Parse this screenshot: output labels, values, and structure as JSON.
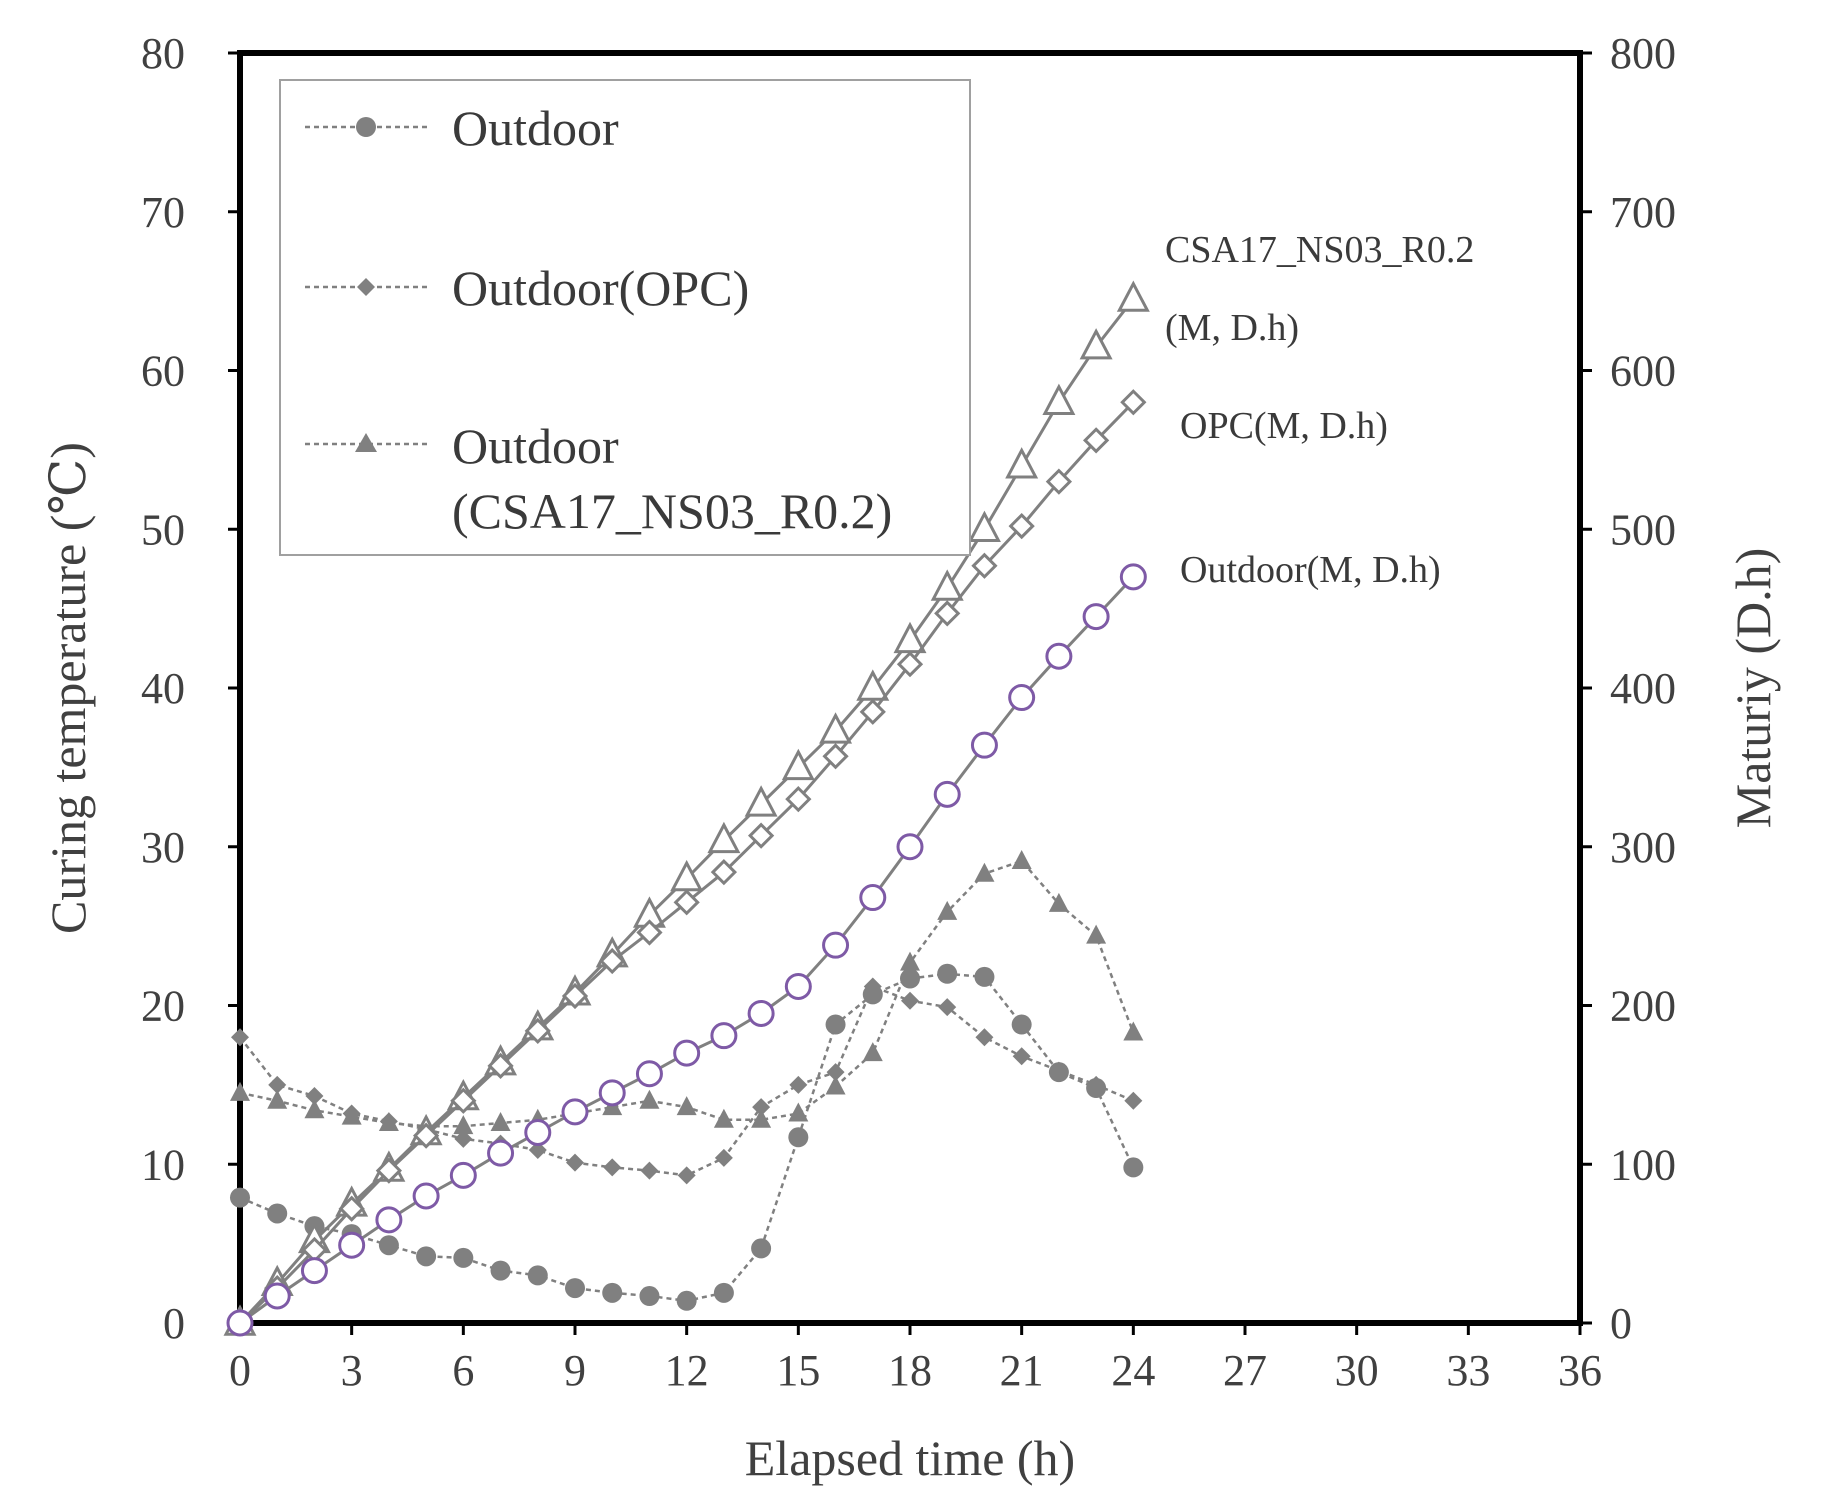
{
  "chart_data": {
    "type": "line",
    "xlabel": "Elapsed time (h)",
    "ylabel_left": "Curing temperature (℃)",
    "ylabel_right": "Maturiy (D.h)",
    "xlim": [
      0,
      36
    ],
    "ylim_left": [
      0,
      80
    ],
    "ylim_right": [
      0,
      800
    ],
    "x_ticks": [
      0,
      3,
      6,
      9,
      12,
      15,
      18,
      21,
      24,
      27,
      30,
      33,
      36
    ],
    "y_left_ticks": [
      0,
      10,
      20,
      30,
      40,
      50,
      60,
      70,
      80
    ],
    "y_right_ticks": [
      0,
      100,
      200,
      300,
      400,
      500,
      600,
      700,
      800
    ],
    "grid": false,
    "legend_position": "top-left",
    "x": [
      0,
      1,
      2,
      3,
      4,
      5,
      6,
      7,
      8,
      9,
      10,
      11,
      12,
      13,
      14,
      15,
      16,
      17,
      18,
      19,
      20,
      21,
      22,
      23,
      24
    ],
    "legend": [
      {
        "label_lines": [
          "Outdoor"
        ],
        "marker": "circle"
      },
      {
        "label_lines": [
          "Outdoor(OPC)"
        ],
        "marker": "diamond"
      },
      {
        "label_lines": [
          "Outdoor",
          "(CSA17_NS03_R0.2)"
        ],
        "marker": "triangle"
      }
    ],
    "series": [
      {
        "name": "Outdoor",
        "axis": "left",
        "marker": "circle",
        "filled": true,
        "line": "dotted",
        "color": "#808080",
        "values": [
          7.9,
          6.9,
          6.1,
          5.6,
          4.9,
          4.2,
          4.1,
          3.3,
          3.0,
          2.2,
          1.9,
          1.7,
          1.4,
          1.9,
          4.7,
          11.7,
          18.8,
          20.7,
          21.7,
          22.0,
          21.8,
          18.8,
          15.8,
          14.8,
          9.8
        ]
      },
      {
        "name": "Outdoor(OPC)",
        "axis": "left",
        "marker": "diamond",
        "filled": true,
        "line": "dotted",
        "color": "#808080",
        "values": [
          18.0,
          15.0,
          14.3,
          13.2,
          12.7,
          12.2,
          11.6,
          11.3,
          10.9,
          10.1,
          9.8,
          9.6,
          9.3,
          10.4,
          13.6,
          15.0,
          15.8,
          21.2,
          20.3,
          19.9,
          18.0,
          16.8,
          15.9,
          15.0,
          14.0
        ]
      },
      {
        "name": "Outdoor(CSA17_NS03_R0.2)",
        "axis": "left",
        "marker": "triangle",
        "filled": true,
        "line": "dotted",
        "color": "#808080",
        "values": [
          14.5,
          14.0,
          13.4,
          13.0,
          12.6,
          12.4,
          12.4,
          12.6,
          12.8,
          13.2,
          13.6,
          14.0,
          13.6,
          12.8,
          12.8,
          13.2,
          14.9,
          17.0,
          22.7,
          25.9,
          28.3,
          29.1,
          26.4,
          24.4,
          18.3
        ]
      },
      {
        "name": "CSA17_NS03_R0.2 (M, D.h)",
        "axis": "right",
        "marker": "triangle",
        "filled": false,
        "line": "solid",
        "color": "#808080",
        "values": [
          0,
          25,
          52,
          75,
          97,
          120,
          142,
          164,
          186,
          208,
          232,
          257,
          280,
          304,
          327,
          350,
          373,
          400,
          430,
          463,
          500,
          540,
          580,
          615,
          645
        ]
      },
      {
        "name": "OPC (M, D.h)",
        "axis": "right",
        "marker": "diamond",
        "filled": false,
        "line": "solid",
        "color": "#808080",
        "values": [
          0,
          22,
          46,
          72,
          96,
          118,
          140,
          162,
          184,
          206,
          228,
          246,
          265,
          284,
          307,
          330,
          357,
          385,
          415,
          447,
          477,
          502,
          530,
          556,
          580
        ]
      },
      {
        "name": "Outdoor (M, D.h)",
        "axis": "right",
        "marker": "circle",
        "filled": false,
        "line": "solid",
        "color": "#7e5aa6",
        "values": [
          0,
          17,
          33,
          49,
          65,
          80,
          93,
          107,
          120,
          133,
          145,
          157,
          170,
          181,
          195,
          212,
          238,
          268,
          300,
          333,
          364,
          394,
          420,
          445,
          470
        ]
      }
    ],
    "annotations": [
      {
        "lines": [
          "CSA17_NS03_R0.2",
          "(M,  D.h)"
        ]
      },
      {
        "lines": [
          "OPC(M, D.h)"
        ]
      },
      {
        "lines": [
          "Outdoor(M, D.h)"
        ]
      }
    ]
  }
}
